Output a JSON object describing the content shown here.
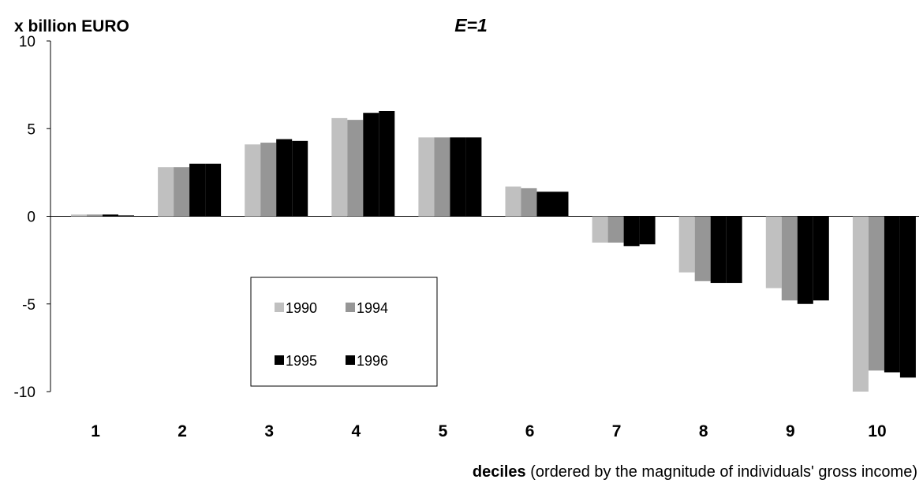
{
  "chart_data": {
    "type": "bar",
    "title": "E=1",
    "ylabel": "x billion EURO",
    "xlabel_bold": "deciles",
    "xlabel_rest": " (ordered by the magnitude of individuals' gross income)",
    "ylim": [
      -10,
      10
    ],
    "yticks": [
      "10",
      "5",
      "0",
      "-5",
      "-10"
    ],
    "ytick_values": [
      10,
      5,
      0,
      -5,
      -10
    ],
    "categories": [
      "1",
      "2",
      "3",
      "4",
      "5",
      "6",
      "7",
      "8",
      "9",
      "10"
    ],
    "series": [
      {
        "name": "1990",
        "color": "#c0c0c0",
        "values": [
          0.1,
          2.8,
          4.1,
          5.6,
          4.5,
          1.7,
          -1.5,
          -3.2,
          -4.1,
          -10.0
        ]
      },
      {
        "name": "1994",
        "color": "#969696",
        "values": [
          0.1,
          2.8,
          4.2,
          5.5,
          4.5,
          1.6,
          -1.5,
          -3.7,
          -4.8,
          -8.8
        ]
      },
      {
        "name": "1995",
        "color": "#000000",
        "values": [
          0.1,
          3.0,
          4.4,
          5.9,
          4.5,
          1.4,
          -1.7,
          -3.8,
          -5.0,
          -8.9
        ]
      },
      {
        "name": "1996",
        "color": "#000000",
        "values": [
          0.05,
          3.0,
          4.3,
          6.0,
          4.5,
          1.4,
          -1.6,
          -3.8,
          -4.8,
          -9.2
        ]
      }
    ],
    "legend_position": "lower-left inside plot",
    "grid": false
  }
}
